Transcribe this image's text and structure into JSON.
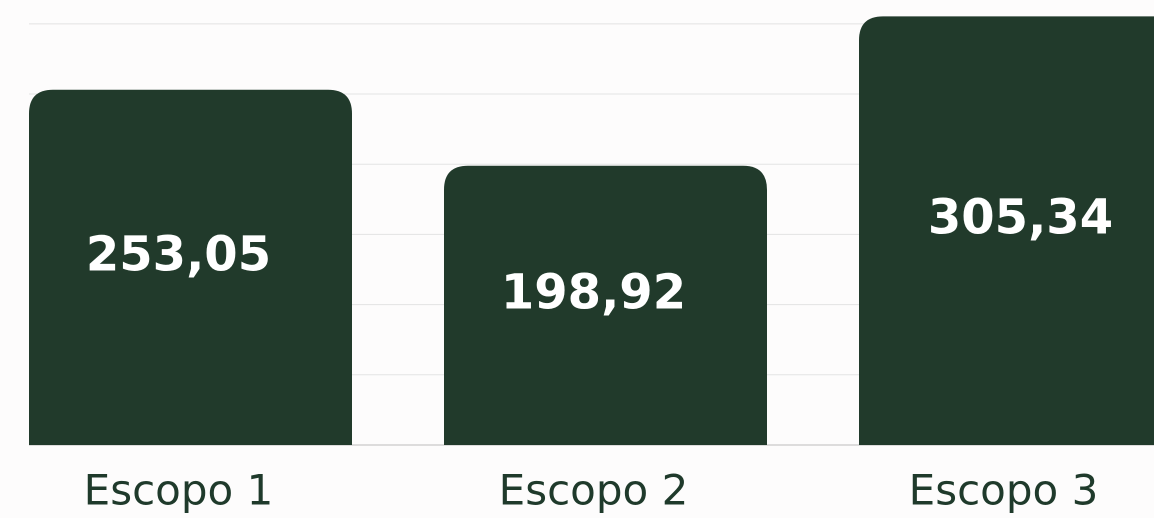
{
  "chart_data": {
    "type": "bar",
    "categories": [
      "Escopo 1",
      "Escopo 2",
      "Escopo 3"
    ],
    "values": [
      253.05,
      198.92,
      305.34
    ],
    "value_labels": [
      "253,05",
      "198,92",
      "305,34"
    ],
    "color": "#213a2b",
    "ylim": [
      0,
      317
    ],
    "yticks": [
      0,
      50,
      100,
      150,
      200,
      250,
      300
    ],
    "grid": true
  }
}
